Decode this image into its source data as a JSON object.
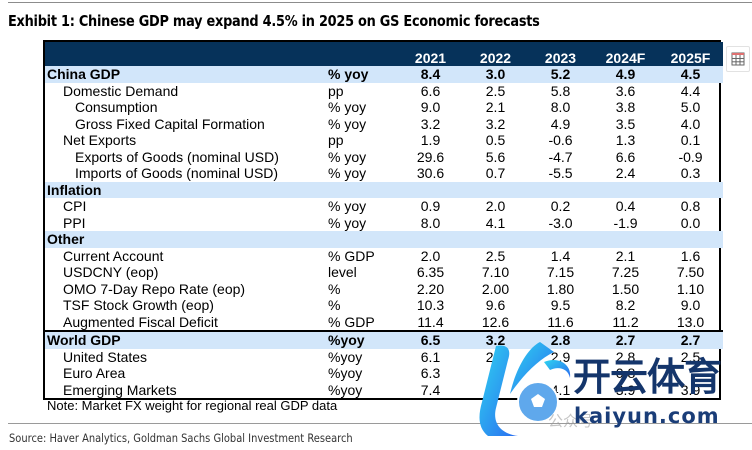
{
  "title": "Exhibit 1: Chinese GDP may expand 4.5% in 2025 on GS Economic forecasts",
  "table": {
    "columns": [
      "2021",
      "2022",
      "2023",
      "2024F",
      "2025F"
    ],
    "rows": [
      {
        "type": "section",
        "label": "China GDP",
        "unit": "% yoy",
        "values": [
          "8.4",
          "3.0",
          "5.2",
          "4.9",
          "4.5"
        ]
      },
      {
        "type": "l1",
        "label": "Domestic Demand",
        "unit": "pp",
        "values": [
          "6.6",
          "2.5",
          "5.8",
          "3.6",
          "4.4"
        ]
      },
      {
        "type": "l2",
        "label": "Consumption",
        "unit": "% yoy",
        "values": [
          "9.0",
          "2.1",
          "8.0",
          "3.8",
          "5.0"
        ]
      },
      {
        "type": "l2",
        "label": "Gross Fixed Capital Formation",
        "unit": "% yoy",
        "values": [
          "3.2",
          "3.2",
          "4.9",
          "3.5",
          "4.0"
        ]
      },
      {
        "type": "l1",
        "label": "Net Exports",
        "unit": "pp",
        "values": [
          "1.9",
          "0.5",
          "-0.6",
          "1.3",
          "0.1"
        ]
      },
      {
        "type": "l2",
        "label": "Exports of Goods (nominal USD)",
        "unit": "% yoy",
        "values": [
          "29.6",
          "5.6",
          "-4.7",
          "6.6",
          "-0.9"
        ]
      },
      {
        "type": "l2",
        "label": "Imports of Goods (nominal USD)",
        "unit": "% yoy",
        "values": [
          "30.6",
          "0.7",
          "-5.5",
          "2.4",
          "0.3"
        ]
      },
      {
        "type": "section",
        "label": "Inflation",
        "unit": "",
        "values": [
          "",
          "",
          "",
          "",
          ""
        ]
      },
      {
        "type": "l1",
        "label": "CPI",
        "unit": "% yoy",
        "values": [
          "0.9",
          "2.0",
          "0.2",
          "0.4",
          "0.8"
        ]
      },
      {
        "type": "l1",
        "label": "PPI",
        "unit": "% yoy",
        "values": [
          "8.0",
          "4.1",
          "-3.0",
          "-1.9",
          "0.0"
        ]
      },
      {
        "type": "section",
        "label": "Other",
        "unit": "",
        "values": [
          "",
          "",
          "",
          "",
          ""
        ]
      },
      {
        "type": "l1",
        "label": "Current Account",
        "unit": "% GDP",
        "values": [
          "2.0",
          "2.5",
          "1.4",
          "2.1",
          "1.6"
        ]
      },
      {
        "type": "l1",
        "label": "USDCNY (eop)",
        "unit": "level",
        "values": [
          "6.35",
          "7.10",
          "7.15",
          "7.25",
          "7.50"
        ]
      },
      {
        "type": "l1",
        "label": "OMO 7-Day Repo Rate (eop)",
        "unit": "%",
        "values": [
          "2.20",
          "2.00",
          "1.80",
          "1.50",
          "1.10"
        ]
      },
      {
        "type": "l1",
        "label": "TSF Stock Growth (eop)",
        "unit": "%",
        "values": [
          "10.3",
          "9.6",
          "9.5",
          "8.2",
          "9.0"
        ]
      },
      {
        "type": "l1",
        "label": "Augmented Fiscal Deficit",
        "unit": "% GDP",
        "values": [
          "11.4",
          "12.6",
          "11.6",
          "11.2",
          "13.0"
        ]
      },
      {
        "type": "section world",
        "label": "World GDP",
        "unit": "%yoy",
        "values": [
          "6.5",
          "3.2",
          "2.8",
          "2.7",
          "2.7"
        ]
      },
      {
        "type": "l1",
        "label": "United States",
        "unit": "%yoy",
        "values": [
          "6.1",
          "2.5",
          "2.9",
          "2.8",
          "2.5"
        ]
      },
      {
        "type": "l1",
        "label": "Euro Area",
        "unit": "%yoy",
        "values": [
          "6.3",
          "3.",
          "",
          "0.8",
          ""
        ]
      },
      {
        "type": "l1",
        "label": "Emerging Markets",
        "unit": "%yoy",
        "values": [
          "7.4",
          "",
          "4.1",
          "3.9",
          "3.9"
        ]
      }
    ]
  },
  "note": "Note: Market FX weight for regional real GDP data",
  "source": "Source: Haver Analytics, Goldman Sachs Global Investment Research",
  "icons": {
    "table_icon": "table-icon"
  },
  "watermark": {
    "chinese": "开云体育",
    "url": "kaiyun.com",
    "sub": "公众号"
  },
  "colors": {
    "header_bg": "#06325a",
    "section_bg": "#d2e6fa"
  }
}
